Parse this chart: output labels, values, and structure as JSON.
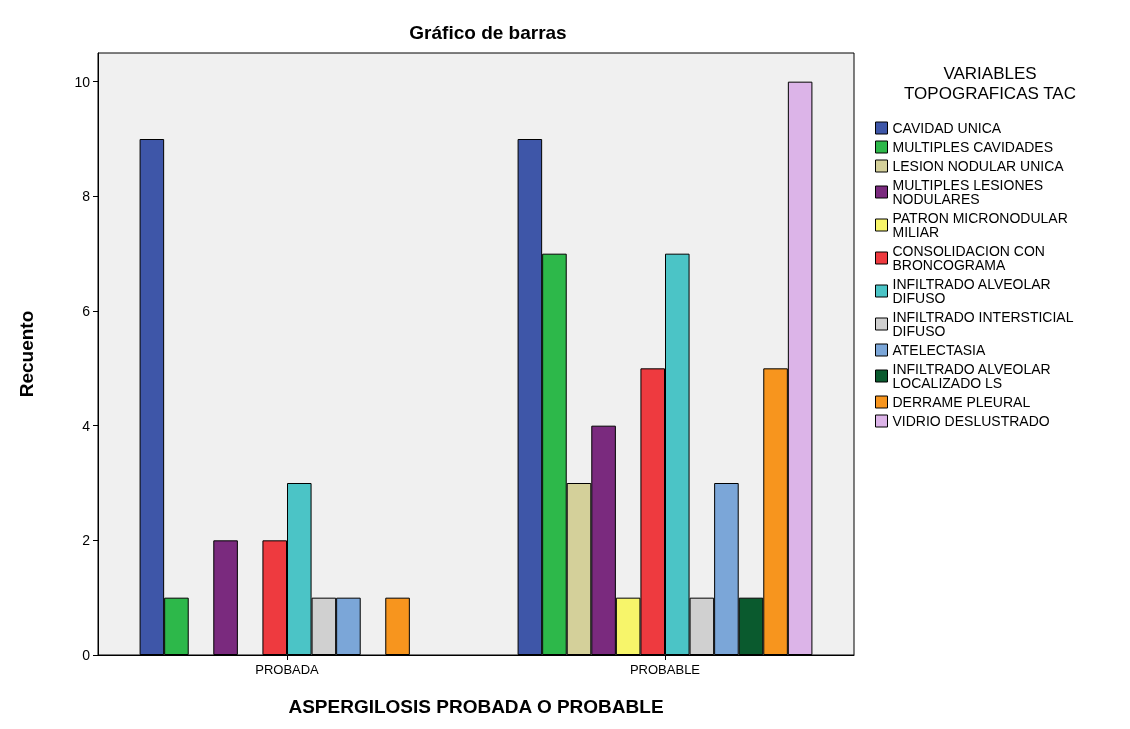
{
  "chart_data": {
    "type": "bar",
    "title": "Gráfico de barras",
    "xlabel": "ASPERGILOSIS PROBADA O PROBABLE",
    "ylabel": "Recuento",
    "legend_title": "VARIABLES TOPOGRAFICAS TAC",
    "categories": [
      "PROBADA",
      "PROBABLE"
    ],
    "series": [
      {
        "name": "CAVIDAD UNICA",
        "color": "#3e56a8",
        "values": [
          9,
          9
        ]
      },
      {
        "name": "MULTIPLES CAVIDADES",
        "color": "#2db84a",
        "values": [
          1,
          7
        ]
      },
      {
        "name": "LESION NODULAR UNICA",
        "color": "#d4d09a",
        "values": [
          null,
          3
        ]
      },
      {
        "name": "MULTIPLES LESIONES NODULARES",
        "color": "#7a2a7e",
        "values": [
          2,
          4
        ]
      },
      {
        "name": "PATRON MICRONODULAR MILIAR",
        "color": "#f7f56a",
        "values": [
          null,
          1
        ]
      },
      {
        "name": "CONSOLIDACION CON BRONCOGRAMA",
        "color": "#ee3a3f",
        "values": [
          2,
          5
        ]
      },
      {
        "name": "INFILTRADO ALVEOLAR DIFUSO",
        "color": "#4bc4c6",
        "values": [
          3,
          7
        ]
      },
      {
        "name": "INFILTRADO INTERSTICIAL DIFUSO",
        "color": "#d0d0d0",
        "values": [
          1,
          1
        ]
      },
      {
        "name": "ATELECTASIA",
        "color": "#7ba6d8",
        "values": [
          1,
          3
        ]
      },
      {
        "name": "INFILTRADO ALVEOLAR LOCALIZADO LS",
        "color": "#0a5a2e",
        "values": [
          null,
          1
        ]
      },
      {
        "name": "DERRAME PLEURAL",
        "color": "#f7951e",
        "values": [
          1,
          5
        ]
      },
      {
        "name": "VIDRIO DESLUSTRADO",
        "color": "#dcb4e8",
        "values": [
          null,
          10
        ]
      }
    ],
    "ylim": [
      0,
      10.5
    ],
    "yticks": [
      0,
      2,
      4,
      6,
      8,
      10
    ],
    "grid": false,
    "legend": "right"
  }
}
